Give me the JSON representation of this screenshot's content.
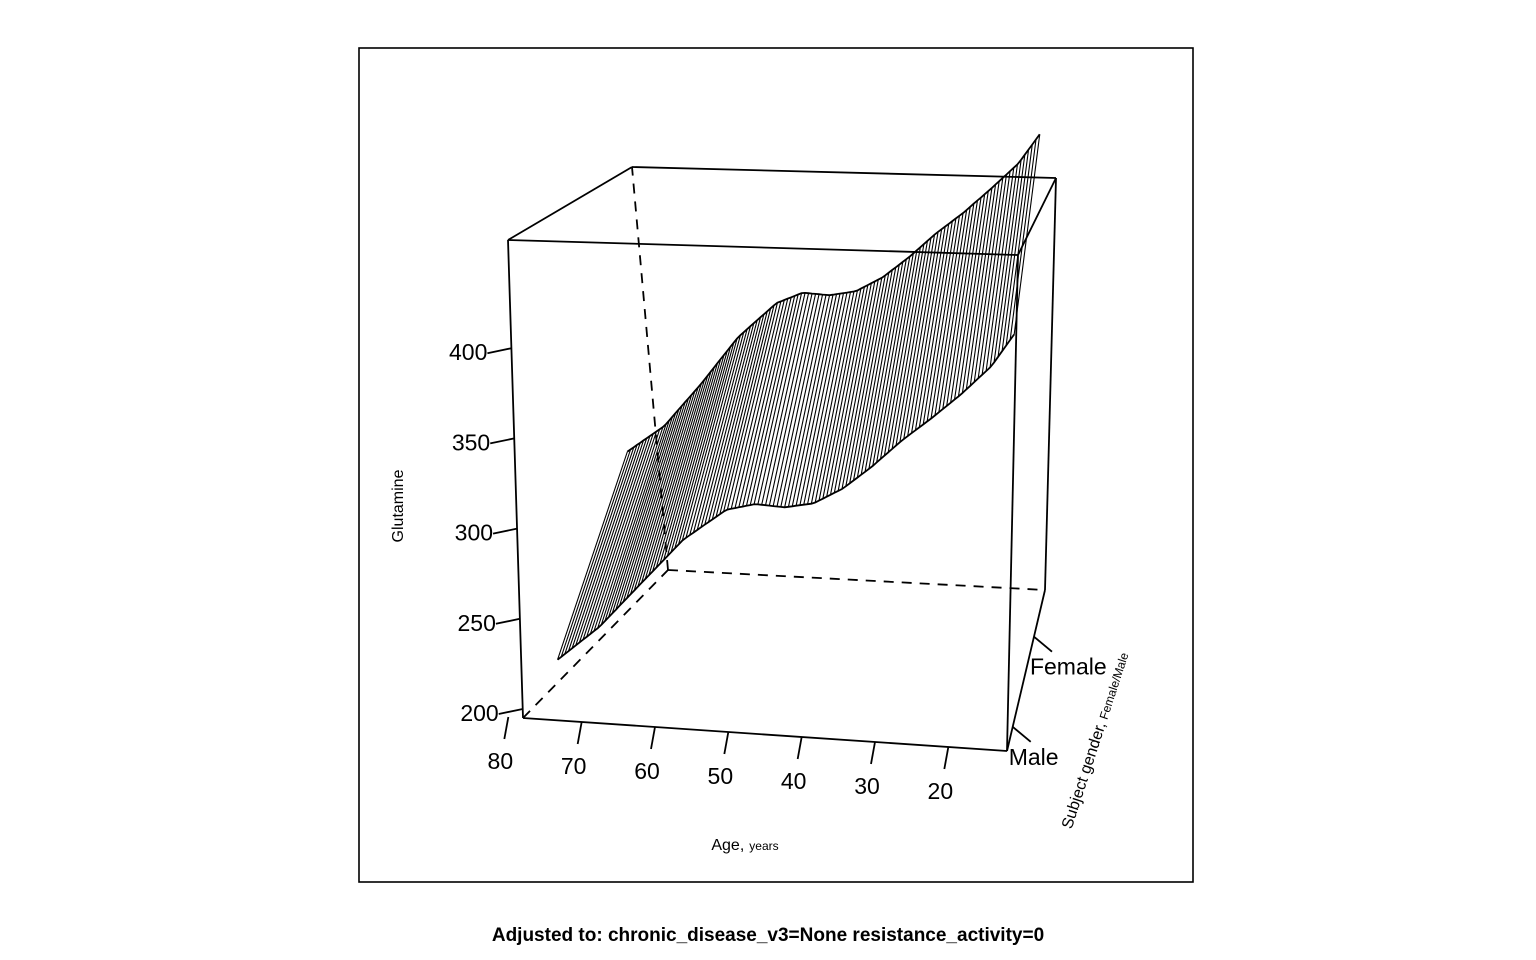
{
  "chart_data": {
    "type": "surface",
    "title": "",
    "footer": "Adjusted to: chronic_disease_v3=None resistance_activity=0",
    "zlabel": "Glutamine",
    "xlabel": {
      "main": "Age,",
      "unit": "years"
    },
    "ylabel": {
      "main": "Subject gender,",
      "levels": "Female/Male"
    },
    "x_axis": {
      "ticks": [
        80,
        70,
        60,
        50,
        40,
        30,
        20
      ],
      "range": [
        78,
        12
      ]
    },
    "y_axis": {
      "categories": [
        "Male",
        "Female"
      ]
    },
    "z_axis": {
      "ticks": [
        200,
        250,
        300,
        350,
        400
      ],
      "range": [
        195,
        460
      ]
    },
    "grid": false,
    "series": [
      {
        "name": "Male",
        "x": [
          76,
          70,
          64,
          58,
          52,
          48,
          44,
          40,
          36,
          32,
          28,
          24,
          20,
          16,
          13
        ],
        "y": [
          216,
          236,
          262,
          288,
          306,
          310,
          309,
          312,
          321,
          334,
          349,
          362,
          376,
          392,
          410
        ]
      },
      {
        "name": "Female",
        "x": [
          76,
          70,
          64,
          58,
          52,
          48,
          44,
          40,
          36,
          32,
          28,
          24,
          20,
          16,
          13
        ],
        "y": [
          296,
          313,
          340,
          370,
          392,
          399,
          398,
          401,
          410,
          423,
          438,
          451,
          466,
          482,
          500
        ]
      }
    ]
  }
}
